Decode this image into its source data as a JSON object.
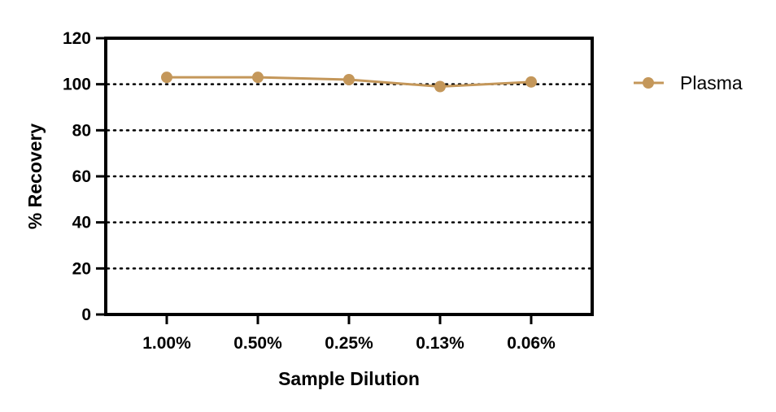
{
  "chart_data": {
    "type": "line",
    "title": "",
    "xlabel": "Sample Dilution",
    "ylabel": "% Recovery",
    "categories": [
      "1.00%",
      "0.50%",
      "0.25%",
      "0.13%",
      "0.06%"
    ],
    "series": [
      {
        "name": "Plasma",
        "values": [
          103,
          103,
          102,
          99,
          101
        ],
        "color": "#C4975A"
      }
    ],
    "ylim": [
      0,
      120
    ],
    "yticks": [
      0,
      20,
      40,
      60,
      80,
      100,
      120
    ],
    "grid": "horizontal dotted",
    "legend": "right"
  }
}
